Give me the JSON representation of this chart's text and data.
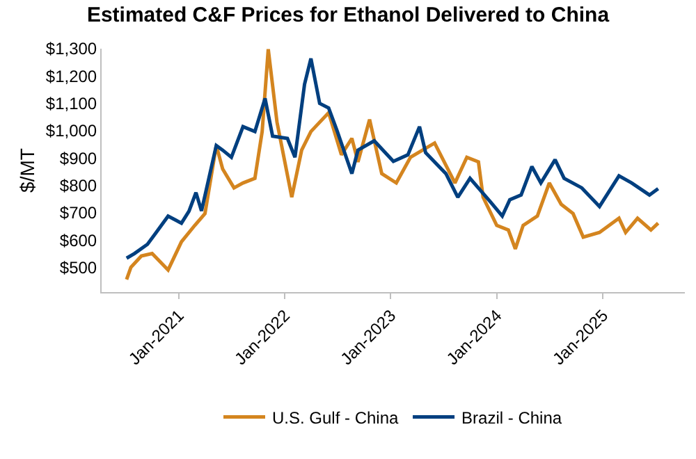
{
  "chart_data": {
    "type": "line",
    "title": "Estimated C&F Prices for Ethanol Delivered to China",
    "ylabel": "$/MT",
    "xlim": [
      "2020-04-10",
      "2025-10-10"
    ],
    "xticks": [
      {
        "value": "2021-01-01",
        "label": "Jan-2021"
      },
      {
        "value": "2022-01-01",
        "label": "Jan-2022"
      },
      {
        "value": "2023-01-01",
        "label": "Jan-2023"
      },
      {
        "value": "2024-01-01",
        "label": "Jan-2024"
      },
      {
        "value": "2025-01-01",
        "label": "Jan-2025"
      }
    ],
    "ylim": [
      410,
      1300
    ],
    "yticks": [
      {
        "value": 500,
        "label": "$500"
      },
      {
        "value": 600,
        "label": "$600"
      },
      {
        "value": 700,
        "label": "$700"
      },
      {
        "value": 800,
        "label": "$800"
      },
      {
        "value": 900,
        "label": "$900"
      },
      {
        "value": 1000,
        "label": "$1,000"
      },
      {
        "value": 1100,
        "label": "$1,100"
      },
      {
        "value": 1200,
        "label": "$1,200"
      },
      {
        "value": 1300,
        "label": "$1,300"
      }
    ],
    "legend": "bottom",
    "marker": "none",
    "line_style": "solid",
    "series": [
      {
        "name": "U.S. Gulf - China",
        "color": "#d4851f",
        "x": [
          "2020-07-05",
          "2020-07-20",
          "2020-08-25",
          "2020-10-01",
          "2020-11-25",
          "2021-01-10",
          "2021-02-25",
          "2021-04-01",
          "2021-05-10",
          "2021-06-01",
          "2021-07-10",
          "2021-08-10",
          "2021-09-20",
          "2021-10-15",
          "2021-11-05",
          "2021-12-05",
          "2022-01-25",
          "2022-02-28",
          "2022-04-01",
          "2022-06-01",
          "2022-07-15",
          "2022-08-20",
          "2022-09-10",
          "2022-10-20",
          "2022-12-01",
          "2023-01-20",
          "2023-03-10",
          "2023-06-01",
          "2023-08-10",
          "2023-09-20",
          "2023-10-30",
          "2023-11-15",
          "2024-01-01",
          "2024-02-10",
          "2024-03-05",
          "2024-04-01",
          "2024-05-20",
          "2024-06-30",
          "2024-08-10",
          "2024-09-20",
          "2024-10-25",
          "2024-12-20",
          "2025-02-25",
          "2025-03-20",
          "2025-04-30",
          "2025-06-15",
          "2025-07-10"
        ],
        "values": [
          456,
          501,
          542,
          551,
          491,
          594,
          654,
          697,
          946,
          860,
          791,
          809,
          826,
          997,
          1298,
          1032,
          757,
          929,
          997,
          1066,
          912,
          972,
          886,
          1041,
          843,
          809,
          903,
          955,
          809,
          903,
          886,
          757,
          654,
          637,
          568,
          654,
          688,
          809,
          731,
          697,
          611,
          628,
          680,
          628,
          680,
          637,
          662
        ]
      },
      {
        "name": "Brazil - China",
        "color": "#003f7f",
        "x": [
          "2020-07-05",
          "2020-08-01",
          "2020-09-15",
          "2020-10-15",
          "2020-11-25",
          "2021-01-10",
          "2021-02-05",
          "2021-03-01",
          "2021-03-20",
          "2021-05-10",
          "2021-06-01",
          "2021-07-01",
          "2021-08-10",
          "2021-09-20",
          "2021-10-25",
          "2021-11-20",
          "2022-01-10",
          "2022-02-05",
          "2022-03-10",
          "2022-04-01",
          "2022-05-01",
          "2022-06-01",
          "2022-07-01",
          "2022-08-20",
          "2022-09-10",
          "2022-11-05",
          "2023-01-10",
          "2023-03-01",
          "2023-04-10",
          "2023-05-01",
          "2023-07-10",
          "2023-08-20",
          "2023-10-01",
          "2023-12-10",
          "2024-01-20",
          "2024-02-15",
          "2024-03-25",
          "2024-05-01",
          "2024-06-01",
          "2024-07-20",
          "2024-08-20",
          "2024-10-20",
          "2024-12-20",
          "2025-02-25",
          "2025-04-10",
          "2025-06-10",
          "2025-07-10"
        ],
        "values": [
          534,
          551,
          585,
          628,
          688,
          662,
          706,
          774,
          707,
          946,
          929,
          903,
          1015,
          997,
          1118,
          980,
          972,
          903,
          1170,
          1264,
          1100,
          1083,
          997,
          843,
          929,
          963,
          888,
          912,
          1015,
          920,
          843,
          757,
          826,
          740,
          688,
          748,
          765,
          869,
          809,
          894,
          826,
          791,
          723,
          835,
          809,
          765,
          788
        ]
      }
    ]
  }
}
